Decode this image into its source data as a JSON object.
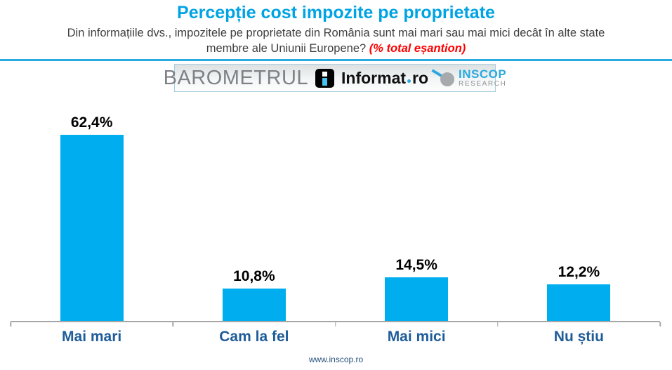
{
  "header": {
    "title": "Percepție cost impozite pe proprietate",
    "subtitle_line1": "Din informațiile dvs., impozitele pe proprietate din România sunt mai mari sau mai mici decât în alte state",
    "subtitle_line2": "membre ale Uniunii Europene?",
    "sample_note": "(% total eșantion)"
  },
  "logos": {
    "barometrul": "BAROMETRUL",
    "informat_name": "Informat",
    "informat_tld": "ro",
    "inscop_name": "INSCOP",
    "inscop_sub": "RESEARCH"
  },
  "chart_data": {
    "type": "bar",
    "categories": [
      "Mai mari",
      "Cam la fel",
      "Mai mici",
      "Nu știu"
    ],
    "values": [
      62.4,
      10.8,
      14.5,
      12.2
    ],
    "value_labels": [
      "62,4%",
      "10,8%",
      "14,5%",
      "12,2%"
    ],
    "title": "Percepție cost impozite pe proprietate",
    "xlabel": "",
    "ylabel": "",
    "ylim": [
      0,
      70
    ],
    "grid": false,
    "legend": false,
    "bar_color": "#00AEEF",
    "category_label_color": "#1F5C99",
    "value_label_color": "#000000",
    "axis_color": "#A6A6A6"
  },
  "footer": {
    "url": "www.inscop.ro"
  },
  "colors": {
    "title_cyan": "#00A3E3",
    "divider_cyan": "#29ABE2",
    "note_red": "#FF0000",
    "subtitle_gray": "#3F3F3F",
    "barometrul_gray": "#7E8287",
    "inscop_cyan": "#2BA9DF"
  }
}
